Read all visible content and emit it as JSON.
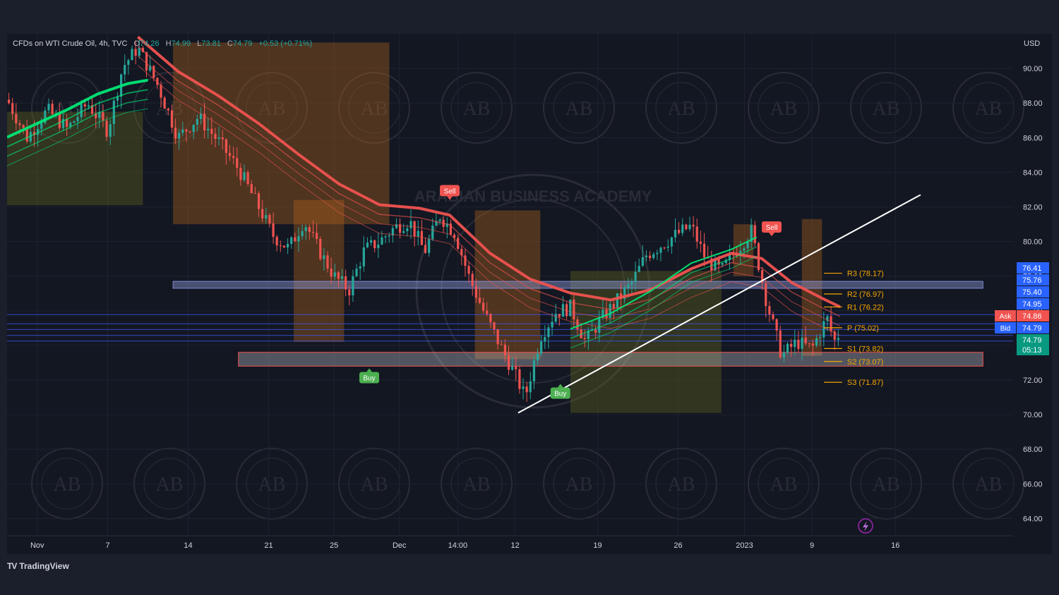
{
  "header": {
    "symbol": "CFDs on WTI Crude Oil, 4h, TVC",
    "open_label": "O",
    "open": "74.26",
    "high_label": "H",
    "high": "74.99",
    "low_label": "L",
    "low": "73.81",
    "close_label": "C",
    "close": "74.79",
    "change": "+0.53 (+0.71%)"
  },
  "brand": {
    "name": "TradingView",
    "icon": "tradingview-logo-icon",
    "watermark": "ARABIAN BUSINESS ACADEMY",
    "watermark_initials": "AB"
  },
  "colors": {
    "background": "#131722",
    "up": "#26a69a",
    "down": "#ef5350",
    "buy": "#4caf50",
    "sell": "#f05350",
    "pivot": "#f7a600",
    "band_red": "#ef5350",
    "band_green": "#00e676",
    "trendline": "#ffffff",
    "zone_blue": "#5b6bbf",
    "ask": "#f05350",
    "bid": "#2962ff",
    "last_price": "#089981"
  },
  "chart_data": {
    "type": "candlestick",
    "currency_label": "USD",
    "ylim": [
      63,
      92
    ],
    "y_ticks": [
      "90.00",
      "88.00",
      "86.00",
      "84.00",
      "82.00",
      "80.00",
      "78.00",
      "76.00",
      "74.00",
      "72.00",
      "70.00",
      "68.00",
      "66.00",
      "64.00"
    ],
    "x_ticks": [
      {
        "label": "Nov",
        "x": 0.03
      },
      {
        "label": "7",
        "x": 0.1
      },
      {
        "label": "14",
        "x": 0.18
      },
      {
        "label": "21",
        "x": 0.26
      },
      {
        "label": "25",
        "x": 0.325
      },
      {
        "label": "Dec",
        "x": 0.39
      },
      {
        "label": "14:00",
        "x": 0.448
      },
      {
        "label": "12",
        "x": 0.505
      },
      {
        "label": "19",
        "x": 0.587
      },
      {
        "label": "26",
        "x": 0.667
      },
      {
        "label": "2023",
        "x": 0.733
      },
      {
        "label": "9",
        "x": 0.8
      },
      {
        "label": "16",
        "x": 0.883
      }
    ],
    "price_path": [
      [
        0.0,
        88.2
      ],
      [
        0.02,
        86.0
      ],
      [
        0.04,
        87.6
      ],
      [
        0.06,
        86.5
      ],
      [
        0.08,
        88.0
      ],
      [
        0.1,
        86.4
      ],
      [
        0.115,
        90.1
      ],
      [
        0.13,
        91.2
      ],
      [
        0.15,
        89.0
      ],
      [
        0.17,
        86.0
      ],
      [
        0.19,
        87.2
      ],
      [
        0.21,
        85.8
      ],
      [
        0.23,
        84.2
      ],
      [
        0.25,
        82.0
      ],
      [
        0.265,
        80.3
      ],
      [
        0.28,
        79.6
      ],
      [
        0.295,
        81.2
      ],
      [
        0.31,
        79.5
      ],
      [
        0.325,
        78.0
      ],
      [
        0.34,
        77.2
      ],
      [
        0.355,
        79.5
      ],
      [
        0.37,
        80.0
      ],
      [
        0.385,
        80.8
      ],
      [
        0.4,
        81.2
      ],
      [
        0.415,
        79.4
      ],
      [
        0.43,
        81.5
      ],
      [
        0.445,
        80.5
      ],
      [
        0.46,
        77.8
      ],
      [
        0.475,
        75.8
      ],
      [
        0.49,
        74.0
      ],
      [
        0.505,
        72.3
      ],
      [
        0.515,
        71.0
      ],
      [
        0.53,
        74.5
      ],
      [
        0.545,
        75.9
      ],
      [
        0.56,
        76.2
      ],
      [
        0.575,
        74.2
      ],
      [
        0.59,
        75.5
      ],
      [
        0.605,
        76.5
      ],
      [
        0.62,
        77.5
      ],
      [
        0.635,
        79.2
      ],
      [
        0.65,
        79.8
      ],
      [
        0.665,
        80.4
      ],
      [
        0.68,
        80.9
      ],
      [
        0.695,
        78.9
      ],
      [
        0.71,
        78.3
      ],
      [
        0.725,
        79.5
      ],
      [
        0.74,
        80.6
      ],
      [
        0.755,
        76.5
      ],
      [
        0.77,
        73.4
      ],
      [
        0.785,
        74.2
      ],
      [
        0.8,
        73.8
      ],
      [
        0.815,
        75.6
      ],
      [
        0.822,
        74.2
      ],
      [
        0.828,
        74.79
      ]
    ],
    "band_red": [
      [
        0.13,
        91.0
      ],
      [
        0.17,
        89.0
      ],
      [
        0.21,
        87.6
      ],
      [
        0.25,
        86.0
      ],
      [
        0.29,
        84.2
      ],
      [
        0.33,
        82.5
      ],
      [
        0.37,
        81.3
      ],
      [
        0.41,
        81.1
      ],
      [
        0.44,
        80.7
      ],
      [
        0.48,
        78.5
      ],
      [
        0.52,
        77.0
      ],
      [
        0.56,
        76.2
      ],
      [
        0.6,
        75.8
      ],
      [
        0.64,
        76.4
      ],
      [
        0.68,
        77.6
      ],
      [
        0.72,
        78.5
      ],
      [
        0.75,
        78.2
      ],
      [
        0.78,
        76.8
      ],
      [
        0.81,
        75.9
      ],
      [
        0.828,
        75.4
      ]
    ],
    "band_green": [
      [
        0.0,
        85.2
      ],
      [
        0.03,
        86.0
      ],
      [
        0.06,
        86.8
      ],
      [
        0.09,
        87.7
      ],
      [
        0.12,
        88.3
      ],
      [
        0.14,
        88.5
      ]
    ],
    "band_green_late": [
      [
        0.56,
        74.4
      ],
      [
        0.6,
        75.3
      ],
      [
        0.64,
        76.6
      ],
      [
        0.68,
        78.2
      ],
      [
        0.72,
        79.0
      ],
      [
        0.745,
        79.7
      ]
    ],
    "trendline": {
      "from": [
        0.508,
        70.1
      ],
      "to": [
        0.908,
        82.7
      ]
    },
    "zones": [
      {
        "from": 0.165,
        "to": 0.38,
        "low": 81.0,
        "high": 91.5,
        "color": "orange"
      },
      {
        "from": 0.0,
        "to": 0.135,
        "low": 82.1,
        "high": 87.5,
        "color": "olive"
      },
      {
        "from": 0.285,
        "to": 0.335,
        "low": 74.2,
        "high": 82.4,
        "color": "orange"
      },
      {
        "from": 0.465,
        "to": 0.53,
        "low": 73.2,
        "high": 81.8,
        "color": "orange"
      },
      {
        "from": 0.56,
        "to": 0.71,
        "low": 70.1,
        "high": 78.3,
        "color": "olive"
      },
      {
        "from": 0.79,
        "to": 0.81,
        "low": 73.4,
        "high": 81.3,
        "color": "orange"
      },
      {
        "from": 0.722,
        "to": 0.742,
        "low": 78.0,
        "high": 81.0,
        "color": "orange"
      }
    ],
    "support_zones": [
      {
        "from": 0.165,
        "to": 0.97,
        "low": 77.3,
        "high": 77.7,
        "color": "blue"
      },
      {
        "from": 0.23,
        "to": 0.97,
        "low": 72.8,
        "high": 73.6,
        "color": "red"
      }
    ],
    "pivots": [
      {
        "label": "R3 (78.17)",
        "value": 78.17
      },
      {
        "label": "R2 (76.97)",
        "value": 76.97
      },
      {
        "label": "R1 (76.22)",
        "value": 76.22
      },
      {
        "label": "P (75.02)",
        "value": 75.02
      },
      {
        "label": "S1 (73.82)",
        "value": 73.82
      },
      {
        "label": "S2 (73.07)",
        "value": 73.07
      },
      {
        "label": "S3 (71.87)",
        "value": 71.87
      }
    ],
    "signals": [
      {
        "label": "Sell",
        "x": 0.44,
        "value": 82.9,
        "side": "sell"
      },
      {
        "label": "Buy",
        "x": 0.36,
        "value": 72.1,
        "side": "buy"
      },
      {
        "label": "Buy",
        "x": 0.55,
        "value": 71.2,
        "side": "buy"
      },
      {
        "label": "Sell",
        "x": 0.76,
        "value": 80.8,
        "side": "sell"
      }
    ],
    "price_labels": [
      {
        "text": "76.41",
        "value": 76.41,
        "color": "#2962ff"
      },
      {
        "text": "75.76",
        "value": 75.76,
        "color": "#2962ff"
      },
      {
        "text": "75.40",
        "value": 75.4,
        "color": "#2962ff"
      },
      {
        "text": "74.95",
        "value": 74.95,
        "color": "#2962ff"
      },
      {
        "text": "74.86",
        "value": 74.86,
        "color": "#f05350",
        "tag": "Ask"
      },
      {
        "text": "74.79",
        "value": 74.79,
        "color": "#2962ff",
        "tag": "Bid"
      },
      {
        "text": "74.79",
        "value": 74.79,
        "color": "#089981",
        "sub": "05:13"
      }
    ],
    "h_lines": [
      75.78,
      75.25,
      74.92,
      74.58,
      74.25
    ],
    "alert_icon": "lightning-icon"
  }
}
